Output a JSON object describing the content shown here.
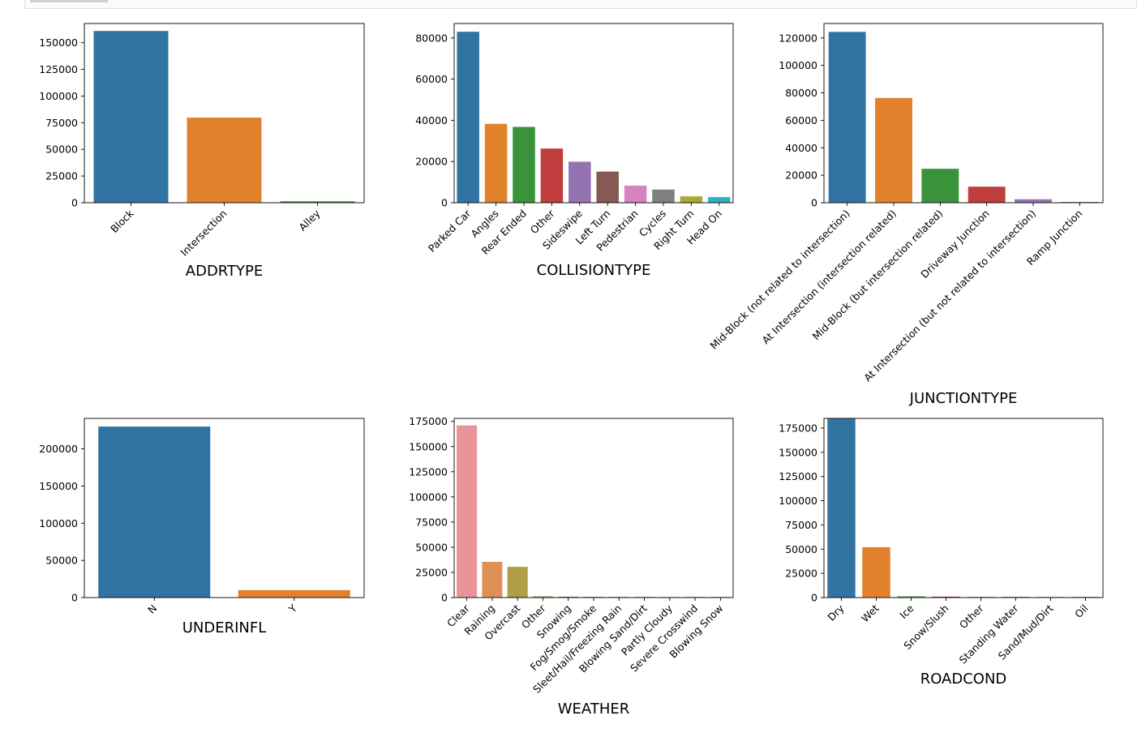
{
  "palette": [
    "#3274a1",
    "#e1812c",
    "#3a923a",
    "#c03d3e",
    "#9372b2",
    "#845b53",
    "#d684bd",
    "#7f7f7f",
    "#a9aa35",
    "#2eb0c2"
  ],
  "weather_palette": [
    "#e8929a",
    "#de9156",
    "#b09d45",
    "#88a34a",
    "#57a94f",
    "#58a77e",
    "#58a5a2",
    "#5aa3bf"
  ],
  "chart_data": [
    {
      "type": "bar",
      "xlabel": "ADDRTYPE",
      "categories": [
        "Block",
        "Intersection",
        "Alley"
      ],
      "values": [
        161000,
        79800,
        1300
      ],
      "ylim": [
        0,
        168000
      ],
      "yticks": [
        0,
        25000,
        50000,
        75000,
        100000,
        125000,
        150000
      ],
      "grid": false
    },
    {
      "type": "bar",
      "xlabel": "COLLISIONTYPE",
      "categories": [
        "Parked Car",
        "Angles",
        "Rear Ended",
        "Other",
        "Sideswipe",
        "Left Turn",
        "Pedestrian",
        "Cycles",
        "Right Turn",
        "Head On"
      ],
      "values": [
        83000,
        38300,
        36800,
        26300,
        19900,
        15100,
        8300,
        6400,
        3100,
        2700
      ],
      "ylim": [
        0,
        87000
      ],
      "yticks": [
        0,
        20000,
        40000,
        60000,
        80000
      ],
      "grid": false
    },
    {
      "type": "bar",
      "xlabel": "JUNCTIONTYPE",
      "categories": [
        "Mid-Block (not related to intersection)",
        "At Intersection (intersection related)",
        "Mid-Block (but intersection related)",
        "Driveway Junction",
        "At Intersection (but not related to intersection)",
        "Ramp Junction"
      ],
      "values": [
        124400,
        76300,
        24700,
        11700,
        2500,
        200
      ],
      "ylim": [
        0,
        130500
      ],
      "yticks": [
        0,
        20000,
        40000,
        60000,
        80000,
        100000,
        120000
      ],
      "grid": false
    },
    {
      "type": "bar",
      "xlabel": "UNDERINFL",
      "categories": [
        "N",
        "Y"
      ],
      "values": [
        230000,
        10000
      ],
      "ylim": [
        0,
        241000
      ],
      "yticks": [
        0,
        50000,
        100000,
        150000,
        200000
      ],
      "grid": false
    },
    {
      "type": "bar",
      "xlabel": "WEATHER",
      "categories": [
        "Clear",
        "Raining",
        "Overcast",
        "Other",
        "Snowing",
        "Fog/Smog/Smoke",
        "Sleet/Hail/Freezing Rain",
        "Blowing Sand/Dirt",
        "Partly Cloudy",
        "Severe Crosswind",
        "Blowing Snow"
      ],
      "values": [
        171000,
        35500,
        30500,
        1200,
        900,
        700,
        150,
        80,
        20,
        30,
        20
      ],
      "ylim": [
        0,
        178000
      ],
      "yticks": [
        0,
        25000,
        50000,
        75000,
        100000,
        125000,
        150000,
        175000
      ],
      "grid": false
    },
    {
      "type": "bar",
      "xlabel": "ROADCOND",
      "categories": [
        "Dry",
        "Wet",
        "Ice",
        "Snow/Slush",
        "Other",
        "Standing Water",
        "Sand/Mud/Dirt",
        "Oil"
      ],
      "values": [
        186000,
        52000,
        1200,
        1000,
        140,
        110,
        80,
        60
      ],
      "ylim": [
        0,
        185000
      ],
      "yticks": [
        0,
        25000,
        50000,
        75000,
        100000,
        125000,
        150000,
        175000
      ],
      "grid": false
    }
  ]
}
